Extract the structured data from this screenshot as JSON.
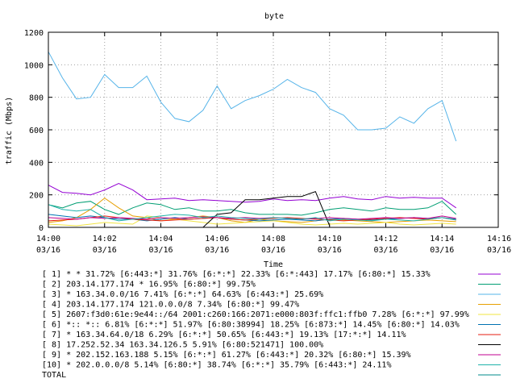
{
  "chart_data": {
    "type": "line",
    "title": "byte",
    "xlabel": "Time",
    "ylabel": "traffic (Mbps)",
    "ylim": [
      0,
      1200
    ],
    "yticks": [
      0,
      200,
      400,
      600,
      800,
      1000,
      1200
    ],
    "xlim_minutes": [
      0,
      16
    ],
    "xticks": [
      {
        "minute": 0,
        "time": "14:00",
        "date": "03/16"
      },
      {
        "minute": 2,
        "time": "14:02",
        "date": "03/16"
      },
      {
        "minute": 4,
        "time": "14:04",
        "date": "03/16"
      },
      {
        "minute": 6,
        "time": "14:06",
        "date": "03/16"
      },
      {
        "minute": 8,
        "time": "14:08",
        "date": "03/16"
      },
      {
        "minute": 10,
        "time": "14:10",
        "date": "03/16"
      },
      {
        "minute": 12,
        "time": "14:12",
        "date": "03/16"
      },
      {
        "minute": 14,
        "time": "14:14",
        "date": "03/16"
      },
      {
        "minute": 16,
        "time": "14:16",
        "date": "03/16"
      }
    ],
    "grid": true,
    "legend_position": "bottom",
    "x_minutes": [
      0,
      0.5,
      1,
      1.5,
      2,
      2.5,
      3,
      3.5,
      4,
      4.5,
      5,
      5.5,
      6,
      6.5,
      7,
      7.5,
      8,
      8.5,
      9,
      9.5,
      10,
      10.5,
      11,
      11.5,
      12,
      12.5,
      13,
      13.5,
      14,
      14.5
    ],
    "series": [
      {
        "name": "[ 1] * * 31.72%  [6:443:*] 31.76% [6:*:*] 22.33% [6:*:443] 17.17% [6:80:*] 15.33%",
        "color": "#9400d3",
        "values": [
          260,
          215,
          210,
          200,
          230,
          270,
          230,
          170,
          175,
          180,
          165,
          170,
          165,
          160,
          155,
          160,
          175,
          165,
          170,
          165,
          180,
          190,
          175,
          170,
          190,
          180,
          185,
          180,
          180,
          120
        ]
      },
      {
        "name": "[ 2] 203.14.177.174 * 16.95%  [6:80:*] 99.75%",
        "color": "#009e73",
        "values": [
          140,
          120,
          150,
          160,
          110,
          80,
          120,
          150,
          140,
          110,
          120,
          100,
          100,
          110,
          90,
          80,
          80,
          80,
          75,
          90,
          110,
          120,
          110,
          100,
          120,
          110,
          110,
          120,
          160,
          80
        ]
      },
      {
        "name": "[ 3] * 163.34.0.0/16 7.41%  [6:*:*] 64.63% [6:443:*] 25.69%",
        "color": "#56b4e9",
        "values": [
          1080,
          920,
          790,
          800,
          940,
          860,
          860,
          930,
          770,
          670,
          650,
          720,
          870,
          730,
          780,
          810,
          850,
          910,
          860,
          830,
          730,
          690,
          600,
          600,
          610,
          680,
          640,
          730,
          780,
          530
        ]
      },
      {
        "name": "[ 4] 203.14.177.174 121.0.0.0/8 7.34%  [6:80:*] 99.47%",
        "color": "#e69f00",
        "values": [
          30,
          40,
          60,
          110,
          180,
          120,
          70,
          60,
          40,
          50,
          60,
          70,
          60,
          40,
          30,
          50,
          40,
          35,
          30,
          40,
          50,
          45,
          40,
          35,
          30,
          35,
          40,
          45,
          40,
          35
        ]
      },
      {
        "name": "[ 5] 2607:f3d0:61e:9e44::/64 2001:c260:166:2071:e000:803f:ffc1:ffb0 7.28%  [6:*:*] 97.99%",
        "color": "#f0e442",
        "values": [
          20,
          15,
          10,
          20,
          30,
          25,
          20,
          70,
          60,
          50,
          40,
          30,
          20,
          25,
          30,
          35,
          40,
          30,
          20,
          15,
          20,
          25,
          20,
          25,
          30,
          20,
          15,
          20,
          25,
          20
        ]
      },
      {
        "name": "[ 6] *:: *:: 6.81%  [6:*:*] 51.97% [6:80:38994] 18.25% [6:873:*] 14.45% [6:80:*] 14.03%",
        "color": "#0072b2",
        "values": [
          80,
          70,
          60,
          70,
          60,
          50,
          50,
          40,
          50,
          60,
          50,
          55,
          60,
          50,
          45,
          40,
          45,
          50,
          45,
          40,
          50,
          55,
          50,
          45,
          50,
          55,
          60,
          55,
          60,
          50
        ]
      },
      {
        "name": "[ 7] * 163.34.64.0/18 6.29%  [6:*:*] 50.65% [6:443:*] 19.13% [17:*:*] 14.11%",
        "color": "#e51e10",
        "values": [
          40,
          45,
          50,
          60,
          70,
          60,
          50,
          45,
          40,
          45,
          50,
          55,
          60,
          50,
          45,
          50,
          55,
          60,
          55,
          50,
          45,
          40,
          45,
          50,
          55,
          60,
          55,
          50,
          60,
          45
        ]
      },
      {
        "name": "[ 8] 17.252.52.34 163.34.126.5 5.91%  [6:80:521471] 100.00%",
        "color": "#000000",
        "values": [
          null,
          null,
          null,
          null,
          null,
          null,
          null,
          null,
          null,
          null,
          null,
          0,
          80,
          90,
          170,
          170,
          180,
          190,
          190,
          220,
          10,
          null,
          null,
          null,
          null,
          null,
          null,
          null,
          null,
          null
        ]
      },
      {
        "name": "[ 9] * 202.152.163.188 5.15%  [6:*:*] 61.27% [6:443:*] 20.32% [6:80:*] 15.39%",
        "color": "#c00090",
        "values": [
          60,
          55,
          50,
          60,
          55,
          60,
          55,
          50,
          60,
          55,
          60,
          65,
          60,
          55,
          60,
          55,
          60,
          55,
          50,
          55,
          60,
          55,
          50,
          55,
          60,
          55,
          60,
          55,
          70,
          55
        ]
      },
      {
        "name": "[10] * 202.0.0.0/8 5.14%  [6:80:*] 38.74% [6:*:*] 35.79% [6:443:*] 24.11%",
        "color": "#20b2aa",
        "values": [
          140,
          110,
          100,
          110,
          60,
          40,
          50,
          60,
          70,
          80,
          75,
          60,
          70,
          60,
          55,
          50,
          60,
          55,
          50,
          60,
          40,
          50,
          45,
          40,
          50,
          45,
          40,
          50,
          60,
          45
        ]
      },
      {
        "name": "TOTAL",
        "color": "#008b8b",
        "values": []
      }
    ]
  }
}
